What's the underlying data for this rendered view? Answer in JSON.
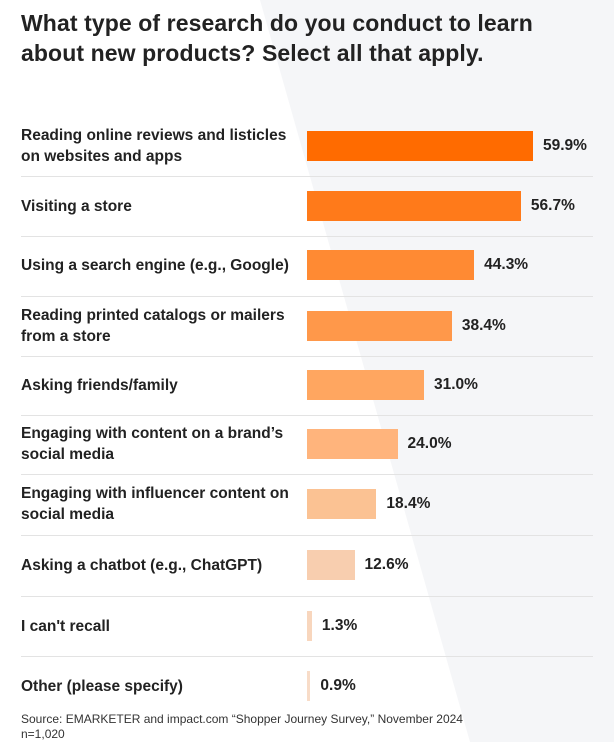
{
  "title": "What type of research do you conduct to learn about new products? Select all that apply.",
  "chart_data": {
    "type": "bar",
    "orientation": "horizontal",
    "categories": [
      "Reading online reviews and listicles on websites and apps",
      "Visiting a store",
      "Using a search engine (e.g., Google)",
      "Reading printed catalogs or mailers from a store",
      "Asking friends/family",
      "Engaging with content on a brand’s social media",
      "Engaging with influencer content on social media",
      "Asking a chatbot (e.g., ChatGPT)",
      "I can't recall",
      "Other (please specify)"
    ],
    "values": [
      59.9,
      56.7,
      44.3,
      38.4,
      31.0,
      24.0,
      18.4,
      12.6,
      1.3,
      0.9
    ],
    "value_labels": [
      "59.9%",
      "56.7%",
      "44.3%",
      "38.4%",
      "31.0%",
      "24.0%",
      "18.4%",
      "12.6%",
      "1.3%",
      "0.9%"
    ],
    "colors": [
      "#ff6b00",
      "#ff7a1a",
      "#ff8a33",
      "#ff984a",
      "#ffa660",
      "#ffb47c",
      "#fbc293",
      "#f8ceaf",
      "#f8d6bd",
      "#f8dcc8"
    ],
    "xlim": [
      0,
      60
    ],
    "grid": false,
    "legend": "none"
  },
  "source": "Source: EMARKETER and impact.com “Shopper Journey Survey,” November 2024",
  "n_note": "n=1,020"
}
